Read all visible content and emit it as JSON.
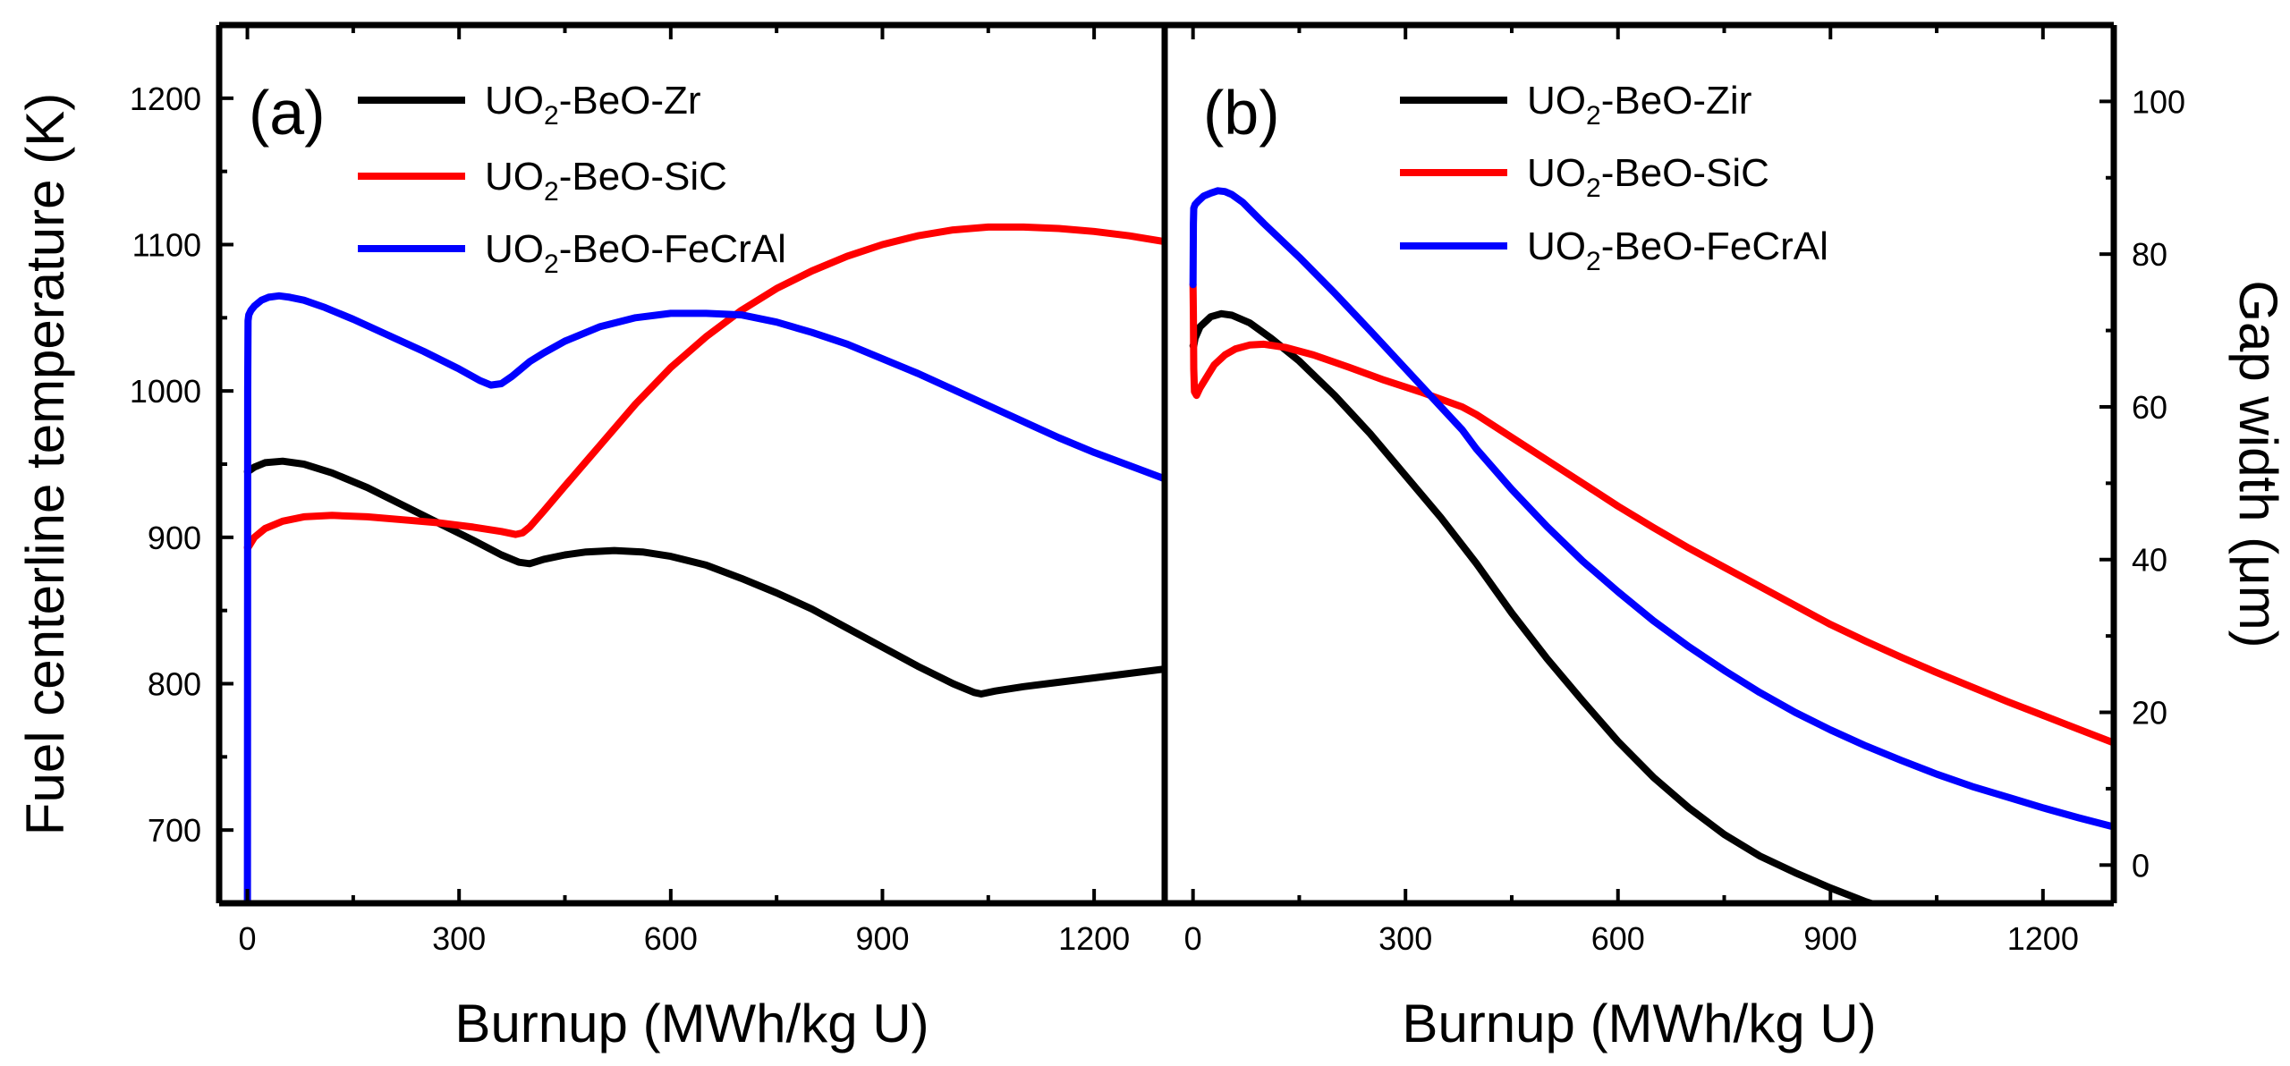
{
  "chart_data": [
    {
      "panel": "(a)",
      "type": "line",
      "xlabel": "Burnup (MWh/kg U)",
      "ylabel": "Fuel centerline temperature (K)",
      "xlim": [
        -40,
        1300
      ],
      "ylim": [
        650,
        1250
      ],
      "xticks": [
        0,
        300,
        600,
        900,
        1200
      ],
      "yticks": [
        700,
        800,
        900,
        1000,
        1100,
        1200
      ],
      "legend_position": "top-left",
      "series": [
        {
          "name": "UO2-BeO-Zr",
          "label_main": "UO",
          "label_sub": "2",
          "label_rest": "-BeO-Zr",
          "color": "#000000",
          "x": [
            0,
            1,
            10,
            25,
            50,
            80,
            120,
            170,
            220,
            270,
            320,
            360,
            385,
            400,
            420,
            450,
            480,
            520,
            560,
            600,
            650,
            700,
            750,
            800,
            850,
            900,
            950,
            1000,
            1030,
            1040,
            1060,
            1100,
            1150,
            1200,
            1250,
            1300
          ],
          "y": [
            945,
            945,
            948,
            951,
            952,
            950,
            944,
            934,
            922,
            910,
            898,
            888,
            883,
            882,
            885,
            888,
            890,
            891,
            890,
            887,
            881,
            872,
            862,
            851,
            838,
            825,
            812,
            800,
            794,
            793,
            795,
            798,
            801,
            804,
            807,
            810
          ]
        },
        {
          "name": "UO2-BeO-SiC",
          "label_main": "UO",
          "label_sub": "2",
          "label_rest": "-BeO-SiC",
          "color": "#ff0000",
          "x": [
            0,
            1,
            10,
            25,
            50,
            80,
            120,
            170,
            220,
            270,
            320,
            360,
            380,
            390,
            400,
            420,
            450,
            500,
            550,
            600,
            650,
            700,
            750,
            800,
            850,
            900,
            950,
            1000,
            1050,
            1100,
            1150,
            1200,
            1250,
            1300
          ],
          "y": [
            893,
            893,
            900,
            906,
            911,
            914,
            915,
            914,
            912,
            910,
            907,
            904,
            902,
            903,
            907,
            918,
            935,
            963,
            991,
            1016,
            1037,
            1055,
            1070,
            1082,
            1092,
            1100,
            1106,
            1110,
            1112,
            1112,
            1111,
            1109,
            1106,
            1102
          ]
        },
        {
          "name": "UO2-BeO-FeCrAl",
          "label_main": "UO",
          "label_sub": "2",
          "label_rest": "-BeO-FeCrAl",
          "color": "#0000ff",
          "x": [
            0,
            0.5,
            1,
            2,
            5,
            10,
            20,
            30,
            45,
            60,
            80,
            110,
            150,
            200,
            250,
            300,
            330,
            345,
            360,
            375,
            390,
            400,
            420,
            450,
            500,
            550,
            600,
            650,
            700,
            750,
            800,
            850,
            900,
            950,
            1000,
            1050,
            1100,
            1150,
            1200,
            1250,
            1300
          ],
          "y": [
            650,
            1000,
            1048,
            1052,
            1055,
            1058,
            1062,
            1064,
            1065,
            1064,
            1062,
            1057,
            1049,
            1038,
            1027,
            1015,
            1007,
            1004,
            1005,
            1010,
            1016,
            1020,
            1026,
            1034,
            1044,
            1050,
            1053,
            1053,
            1052,
            1047,
            1040,
            1032,
            1022,
            1012,
            1001,
            990,
            979,
            968,
            958,
            949,
            940
          ]
        }
      ]
    },
    {
      "panel": "(b)",
      "type": "line",
      "xlabel": "Burnup (MWh/kg U)",
      "ylabel": "Gap width (μm)",
      "xlim": [
        -40,
        1300
      ],
      "ylim": [
        -5,
        110
      ],
      "xticks": [
        0,
        300,
        600,
        900,
        1200
      ],
      "yticks": [
        0,
        20,
        40,
        60,
        80,
        100
      ],
      "legend_position": "top-right",
      "series": [
        {
          "name": "UO2-BeO-Zir",
          "label_main": "UO",
          "label_sub": "2",
          "label_rest": "-BeO-Zir",
          "color": "#000000",
          "x": [
            0,
            1,
            3,
            10,
            25,
            40,
            55,
            80,
            110,
            150,
            200,
            250,
            300,
            350,
            400,
            450,
            500,
            550,
            600,
            650,
            700,
            750,
            800,
            850,
            900,
            950,
            1000,
            1030,
            1040,
            1060,
            1100,
            1150,
            1200,
            1250,
            1300
          ],
          "y": [
            68,
            68,
            69,
            70.5,
            71.8,
            72.2,
            72,
            71,
            69,
            66,
            61.5,
            56.5,
            51,
            45.5,
            39.5,
            33,
            27,
            21.5,
            16.2,
            11.5,
            7.5,
            4,
            1.2,
            -1,
            -3,
            -4.8,
            -6.3,
            -7,
            -7.3,
            -7.5,
            -7.5,
            -7.5,
            -7.6,
            -7.6,
            -7.6
          ]
        },
        {
          "name": "UO2-BeO-SiC",
          "label_main": "UO",
          "label_sub": "2",
          "label_rest": "-BeO-SiC",
          "color": "#ff0000",
          "x": [
            0,
            0.5,
            1,
            2,
            5,
            10,
            20,
            30,
            45,
            60,
            80,
            100,
            130,
            170,
            220,
            270,
            320,
            380,
            400,
            450,
            500,
            550,
            600,
            650,
            700,
            750,
            800,
            850,
            900,
            950,
            1000,
            1050,
            1100,
            1150,
            1200,
            1250,
            1300
          ],
          "y": [
            76,
            72,
            65,
            62,
            61.5,
            62.5,
            64,
            65.5,
            66.8,
            67.6,
            68.1,
            68.2,
            67.8,
            66.8,
            65.2,
            63.5,
            62,
            60,
            59,
            56,
            53,
            50,
            47,
            44.2,
            41.5,
            39,
            36.5,
            34,
            31.5,
            29.3,
            27.2,
            25.2,
            23.3,
            21.4,
            19.6,
            17.8,
            16
          ]
        },
        {
          "name": "UO2-BeO-FeCrAl",
          "label_main": "UO",
          "label_sub": "2",
          "label_rest": "-BeO-FeCrAl",
          "color": "#0000ff",
          "x": [
            0,
            0.5,
            1,
            3,
            8,
            15,
            25,
            35,
            45,
            55,
            70,
            100,
            150,
            200,
            250,
            300,
            350,
            380,
            400,
            450,
            500,
            550,
            600,
            650,
            700,
            750,
            800,
            850,
            900,
            950,
            1000,
            1050,
            1100,
            1150,
            1200,
            1250,
            1300
          ],
          "y": [
            76,
            84,
            86,
            86.5,
            87,
            87.6,
            88,
            88.3,
            88.2,
            87.8,
            86.8,
            84,
            79.6,
            74.9,
            70,
            65,
            60,
            57,
            54.5,
            49.2,
            44.3,
            39.8,
            35.8,
            32,
            28.6,
            25.5,
            22.6,
            20,
            17.7,
            15.6,
            13.7,
            11.9,
            10.3,
            8.9,
            7.5,
            6.2,
            5
          ]
        }
      ]
    }
  ]
}
